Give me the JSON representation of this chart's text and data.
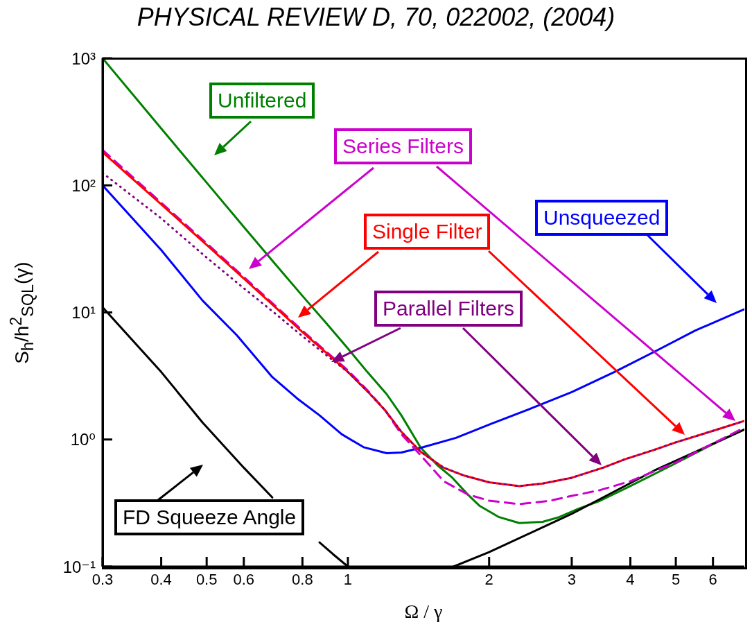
{
  "chart_data": {
    "type": "line",
    "title": "PHYSICAL REVIEW D, 70, 022002, (2004)",
    "xlabel": "Ω / γ",
    "ylabel": "S$_{h}$/h$^{2}$$_{SQL}$(γ)",
    "log": "xy",
    "marker": "none",
    "xlim": [
      0.3,
      7
    ],
    "ylim": [
      0.1,
      1000
    ],
    "xticks": [
      0.3,
      0.4,
      0.5,
      0.6,
      0.8,
      1,
      2,
      3,
      4,
      5,
      6
    ],
    "yticks": [
      {
        "value": 0.1,
        "label": "10⁻¹"
      },
      {
        "value": 1,
        "label": "10⁰"
      },
      {
        "value": 10,
        "label": "10¹"
      },
      {
        "value": 100,
        "label": "10²"
      },
      {
        "value": 1000,
        "label": "10³"
      }
    ],
    "series": [
      {
        "name": "Unfiltered",
        "color": "#008000",
        "line_style": "solid",
        "x": [
          0.3,
          0.4,
          0.5,
          0.6,
          0.7,
          0.8,
          0.9,
          1.0,
          1.1,
          1.21,
          1.3,
          1.43,
          1.55,
          1.67,
          1.8,
          1.91,
          2.1,
          2.32,
          2.6,
          2.82,
          3.1,
          3.45,
          4,
          5,
          6,
          7
        ],
        "values": [
          1000,
          280,
          105,
          47,
          24,
          13.5,
          8.2,
          5.2,
          3.4,
          2.27,
          1.55,
          0.86,
          0.63,
          0.5,
          0.37,
          0.3,
          0.245,
          0.22,
          0.225,
          0.245,
          0.285,
          0.33,
          0.43,
          0.65,
          0.92,
          1.2
        ]
      },
      {
        "name": "Unsqueezed",
        "color": "#0000ff",
        "line_style": "solid",
        "x": [
          0.3,
          0.4,
          0.49,
          0.58,
          0.69,
          0.78,
          0.87,
          0.97,
          1.08,
          1.21,
          1.3,
          1.43,
          1.7,
          2.02,
          2.5,
          3,
          3.7,
          4.5,
          5.5,
          7
        ],
        "values": [
          100,
          31,
          12.4,
          6.6,
          3.1,
          2.1,
          1.55,
          1.1,
          0.87,
          0.78,
          0.79,
          0.86,
          1.03,
          1.33,
          1.8,
          2.36,
          3.4,
          4.9,
          7.2,
          10.6
        ]
      },
      {
        "name": "FD Squeeze Angle",
        "color": "#000000",
        "line_style": "solid",
        "x": [
          0.3,
          0.4,
          0.49,
          0.6,
          0.69,
          0.78,
          0.87,
          0.93,
          1.0,
          1.3,
          1.68,
          2,
          3,
          4.5,
          7
        ],
        "values": [
          11,
          3.4,
          1.36,
          0.6,
          0.35,
          null,
          0.155,
          0.125,
          0.1,
          null,
          0.1,
          0.13,
          0.26,
          0.57,
          1.2
        ]
      },
      {
        "name": "Series Filters",
        "color": "#cc00cc",
        "line_style": "dashed",
        "x": [
          0.3,
          0.4,
          0.5,
          0.6,
          0.7,
          0.8,
          0.9,
          1.0,
          1.1,
          1.2,
          1.3,
          1.43,
          1.6,
          1.8,
          2.0,
          2.32,
          2.7,
          3.0,
          3.45,
          4,
          5,
          6,
          7
        ],
        "values": [
          190,
          73,
          35,
          19,
          11.3,
          7.2,
          4.9,
          3.5,
          2.45,
          1.7,
          1.1,
          0.75,
          0.47,
          0.37,
          0.33,
          0.31,
          0.33,
          0.36,
          0.4,
          0.47,
          0.66,
          0.93,
          1.24
        ]
      },
      {
        "name": "Single Filter",
        "color": "#ff0000",
        "line_style": "solid",
        "x": [
          0.3,
          0.4,
          0.5,
          0.6,
          0.7,
          0.8,
          0.9,
          1.0,
          1.1,
          1.2,
          1.3,
          1.43,
          1.6,
          1.77,
          2,
          2.32,
          2.6,
          3,
          3.5,
          3.9,
          4.5,
          5,
          6,
          7
        ],
        "values": [
          182,
          71,
          34,
          18.5,
          11,
          7,
          4.8,
          3.4,
          2.4,
          1.7,
          1.15,
          0.8,
          0.6,
          0.52,
          0.46,
          0.43,
          0.45,
          0.5,
          0.6,
          0.7,
          0.83,
          0.95,
          1.17,
          1.4
        ]
      },
      {
        "name": "Parallel Filters",
        "color": "#800080",
        "line_style": "dotted",
        "x": [
          0.3,
          0.4,
          0.5,
          0.6,
          0.7,
          0.8,
          0.9,
          1.0,
          1.1,
          1.2,
          1.3,
          1.43,
          1.6,
          1.77,
          2,
          2.32,
          2.6,
          3,
          3.5,
          3.9,
          4.5,
          5,
          6,
          7
        ],
        "values": [
          125,
          55,
          27,
          15.5,
          9.8,
          6.5,
          4.6,
          3.4,
          2.4,
          1.7,
          1.15,
          0.8,
          0.6,
          0.52,
          0.46,
          0.43,
          0.45,
          0.5,
          0.6,
          0.7,
          0.83,
          0.95,
          1.17,
          1.4
        ]
      }
    ]
  }
}
